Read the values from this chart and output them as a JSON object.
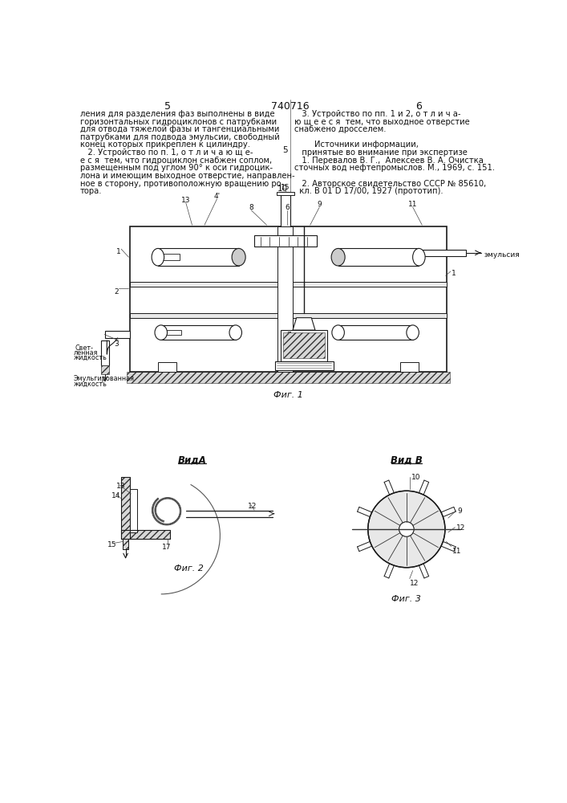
{
  "bg_color": "#ffffff",
  "header": {
    "left_num": "5",
    "center_num": "740716",
    "right_num": "6"
  },
  "left_text": [
    "ления для разделения фаз выполнены в виде",
    "горизонтальных гидроциклонов с патрубками",
    "для отвода тяжелой фазы и тангенциальными",
    "патрубками для подвода эмульсии, свободный",
    "конец которых прикреплен к цилиндру.",
    "   2. Устройство по п. 1, о т л и ч а ю щ е-",
    "е с я  тем, что гидроциклон снабжен соплом,",
    "размещенным под углом 90° к оси гидроцик-",
    "лона и имеющим выходное отверстие, направлен-",
    "ное в сторону, противоположную вращению ро-",
    "тора."
  ],
  "right_text": [
    "   3. Устройство по пп. 1 и 2, о т л и ч а-",
    "ю щ е е с я  тем, что выходное отверстие",
    "снабжено дросселем.",
    "",
    "        Источники информации,",
    "   принятые во внимание при экспертизе",
    "   1. Перевалов В. Г.,  Алексеев В. А. Очистка",
    "сточных вод нефтепромыслов. М., 1969, с. 151.",
    "",
    "   2. Авторское свидетельство СССР № 85610,",
    "  кл. В 01 D 17/00, 1927 (прототип)."
  ],
  "fig1_caption": "Фиг. 1",
  "fig2_caption": "Фиг. 2",
  "fig3_caption": "Фиг. 3",
  "vida_label": "ВидА",
  "vidb_label": "Вид В"
}
